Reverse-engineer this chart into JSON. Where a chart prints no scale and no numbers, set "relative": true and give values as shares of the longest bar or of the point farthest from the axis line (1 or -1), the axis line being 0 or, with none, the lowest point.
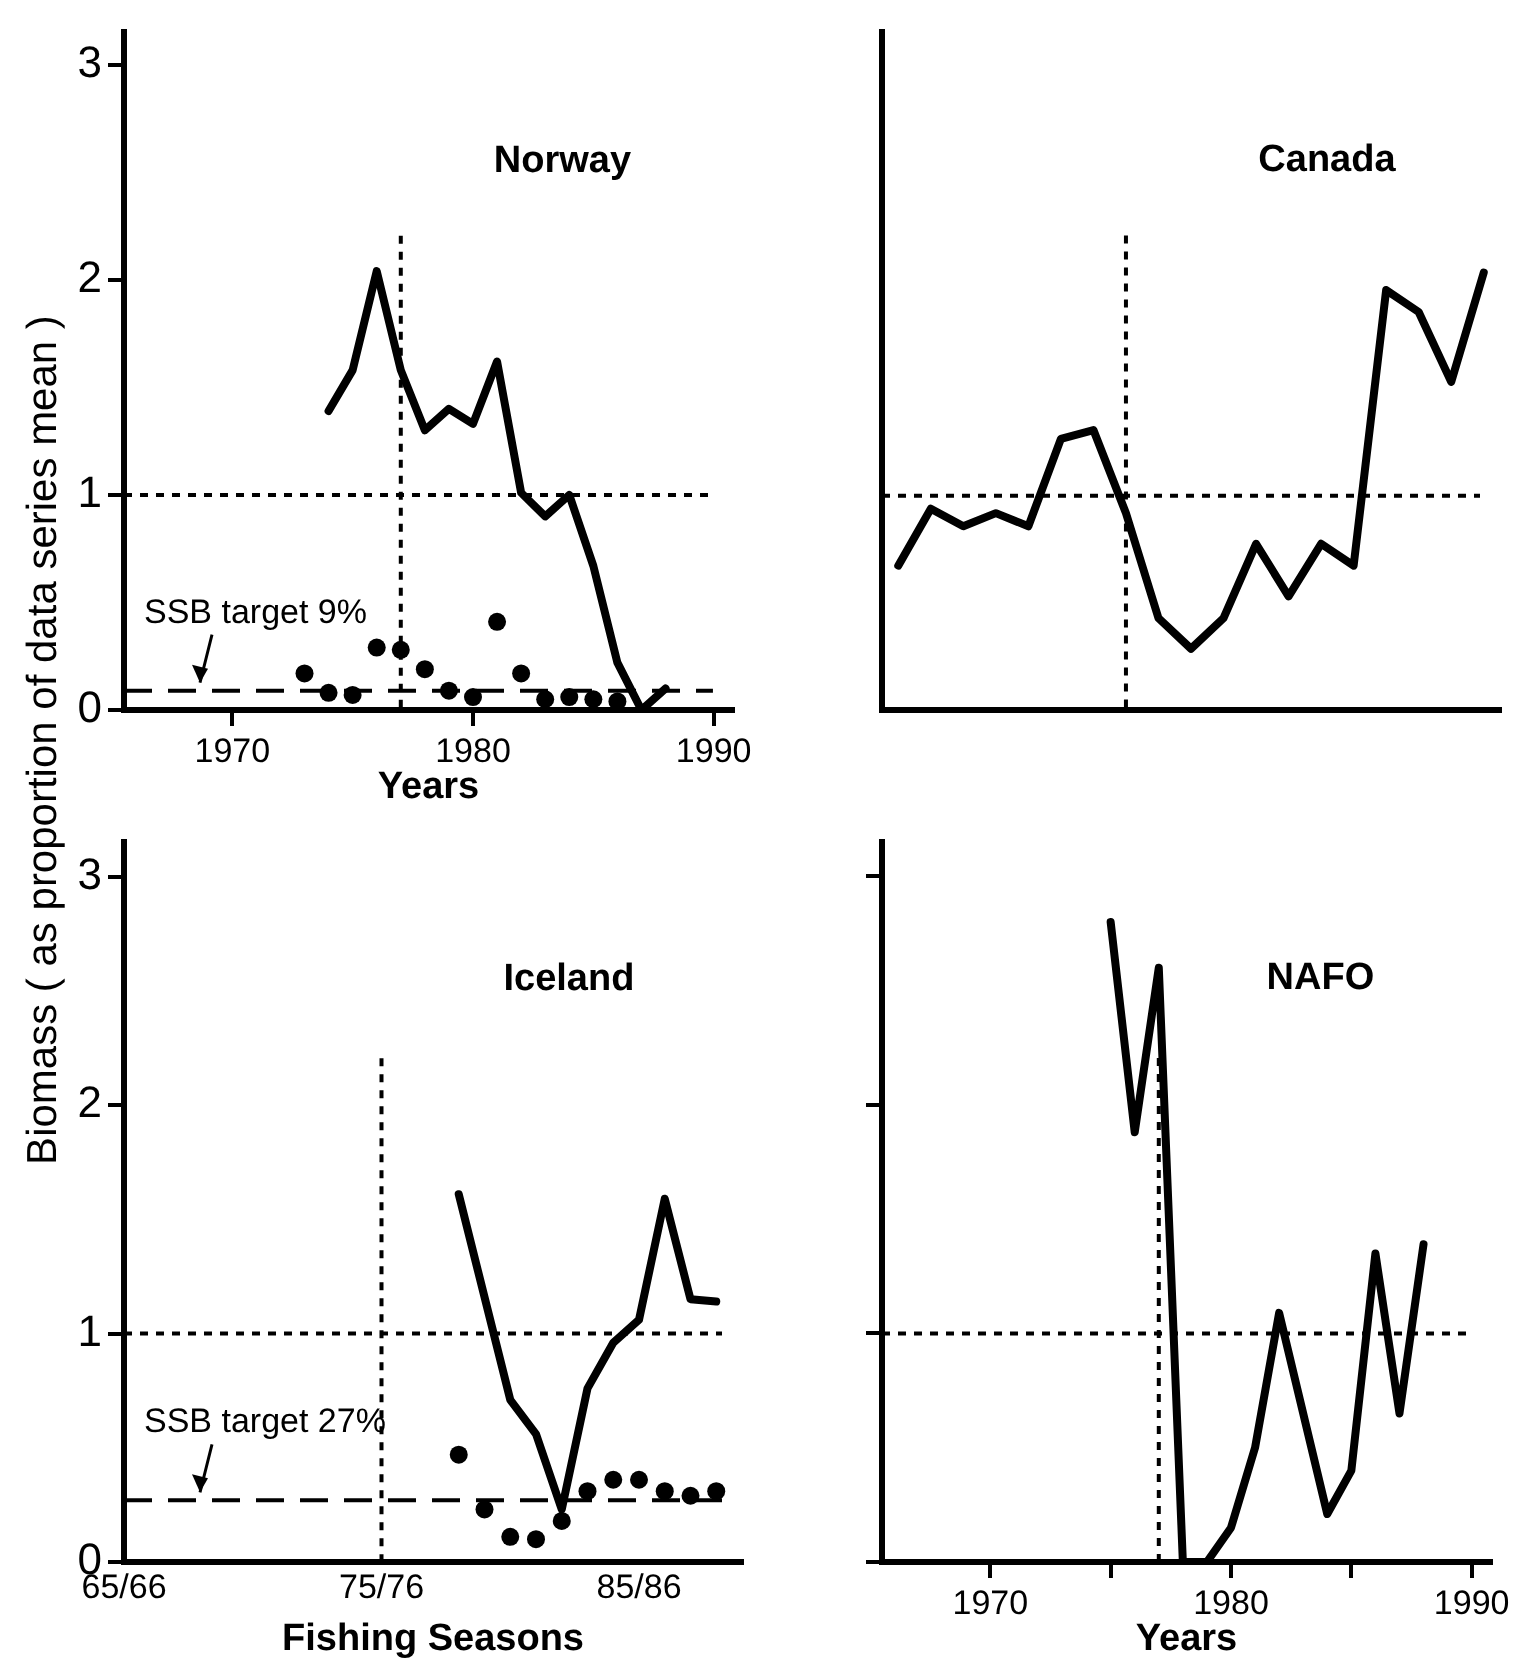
{
  "chart_data": [
    {
      "type": "line",
      "title": "Norway",
      "xlabel": "Years",
      "ylabel": "Biomass  ( as proportion of data series mean )",
      "xlim": [
        1965.5,
        1990.8
      ],
      "xticks": [
        1970,
        1980,
        1990
      ],
      "ylim": [
        0,
        3.15
      ],
      "yticks": [
        0,
        1,
        2,
        3
      ],
      "grid": false,
      "series": [
        {
          "type": "line",
          "color": "#000000",
          "marker": "none",
          "x": [
            1974,
            1975,
            1976,
            1977,
            1978,
            1979,
            1980,
            1981,
            1982,
            1983,
            1984,
            1985,
            1986,
            1987,
            1988
          ],
          "values": [
            1.39,
            1.58,
            2.04,
            1.58,
            1.3,
            1.4,
            1.33,
            1.62,
            1.01,
            0.9,
            1.0,
            0.67,
            0.22,
            0.0,
            0.1
          ]
        },
        {
          "type": "scatter",
          "color": "#000000",
          "marker": "circle",
          "x": [
            1973,
            1974,
            1975,
            1976,
            1977,
            1978,
            1979,
            1980,
            1981,
            1982,
            1983,
            1984,
            1985,
            1986
          ],
          "values": [
            0.17,
            0.08,
            0.07,
            0.29,
            0.28,
            0.19,
            0.09,
            0.06,
            0.41,
            0.17,
            0.05,
            0.06,
            0.05,
            0.04
          ]
        }
      ],
      "ref_lines": [
        {
          "axis": "y",
          "value": 1,
          "line_style": "dotted"
        },
        {
          "axis": "x",
          "value": 1977,
          "line_style": "dotted"
        },
        {
          "axis": "y",
          "value": 0.09,
          "label": "SSB target 9%",
          "line_style": "dashed"
        }
      ]
    },
    {
      "type": "line",
      "title": "Canada",
      "relative": true,
      "categories": [
        null,
        null,
        null,
        null,
        null,
        null,
        null,
        null,
        null,
        null,
        null,
        null,
        null,
        null,
        null,
        null,
        null,
        null,
        null
      ],
      "grid": false,
      "tick_labels": false,
      "series": [
        {
          "type": "line",
          "color": "#000000",
          "marker": "none",
          "values": [
            0.33,
            0.46,
            0.42,
            0.45,
            0.42,
            0.62,
            0.64,
            0.45,
            0.21,
            0.14,
            0.21,
            0.38,
            0.26,
            0.38,
            0.33,
            0.96,
            0.91,
            0.75,
            1.0
          ]
        }
      ],
      "ref_lines": [
        {
          "axis": "y",
          "value": 0.49,
          "line_style": "dotted"
        }
      ]
    },
    {
      "type": "line",
      "title": "Iceland",
      "xlabel": "Fishing Seasons",
      "categories": [
        "65/66",
        null,
        null,
        null,
        null,
        null,
        null,
        null,
        null,
        null,
        "75/76",
        null,
        null,
        null,
        null,
        null,
        null,
        null,
        null,
        null,
        "85/86",
        null,
        null,
        null,
        null
      ],
      "ylim": [
        0,
        3.15
      ],
      "yticks": [
        0,
        1,
        2,
        3
      ],
      "grid": false,
      "series": [
        {
          "type": "line",
          "color": "#000000",
          "marker": "none",
          "values": [
            null,
            null,
            null,
            null,
            null,
            null,
            null,
            null,
            null,
            null,
            null,
            null,
            null,
            1.61,
            null,
            0.71,
            0.56,
            0.23,
            0.76,
            0.96,
            1.06,
            1.59,
            1.15,
            1.14,
            null
          ]
        },
        {
          "type": "scatter",
          "color": "#000000",
          "marker": "circle",
          "values": [
            null,
            null,
            null,
            null,
            null,
            null,
            null,
            null,
            null,
            null,
            null,
            null,
            null,
            0.47,
            0.23,
            0.11,
            0.1,
            0.18,
            0.31,
            0.36,
            0.36,
            0.31,
            0.29,
            0.31,
            null
          ]
        }
      ],
      "ref_lines": [
        {
          "axis": "x",
          "value": "75/76",
          "line_style": "dotted"
        },
        {
          "axis": "y",
          "value": 1,
          "line_style": "dotted"
        },
        {
          "axis": "y",
          "value": 0.27,
          "label": "SSB target 27%",
          "line_style": "dashed"
        }
      ]
    },
    {
      "type": "line",
      "title": "NAFO",
      "xlabel": "Years",
      "xlim": [
        1965.5,
        1990.8
      ],
      "xticks": [
        1970,
        {
          "value": 1975,
          "label": null
        },
        1980,
        {
          "value": 1985,
          "label": null
        },
        1990
      ],
      "ylim": [
        0,
        3.15
      ],
      "yticks": [
        0,
        1,
        2,
        3
      ],
      "grid": false,
      "tick_labels": "x",
      "series": [
        {
          "type": "line",
          "color": "#000000",
          "marker": "none",
          "x": [
            1975,
            1976,
            1977,
            1978,
            1979,
            1980,
            1981,
            1982,
            1984,
            1985,
            1986,
            1987,
            1988
          ],
          "values": [
            2.8,
            1.88,
            2.6,
            0.0,
            0.0,
            0.15,
            0.5,
            1.09,
            0.21,
            0.4,
            1.35,
            0.65,
            1.39
          ]
        }
      ],
      "ref_lines": [
        {
          "axis": "y",
          "value": 1,
          "line_style": "dotted"
        },
        {
          "axis": "x",
          "value": 1977,
          "line_style": "dotted"
        }
      ]
    }
  ]
}
